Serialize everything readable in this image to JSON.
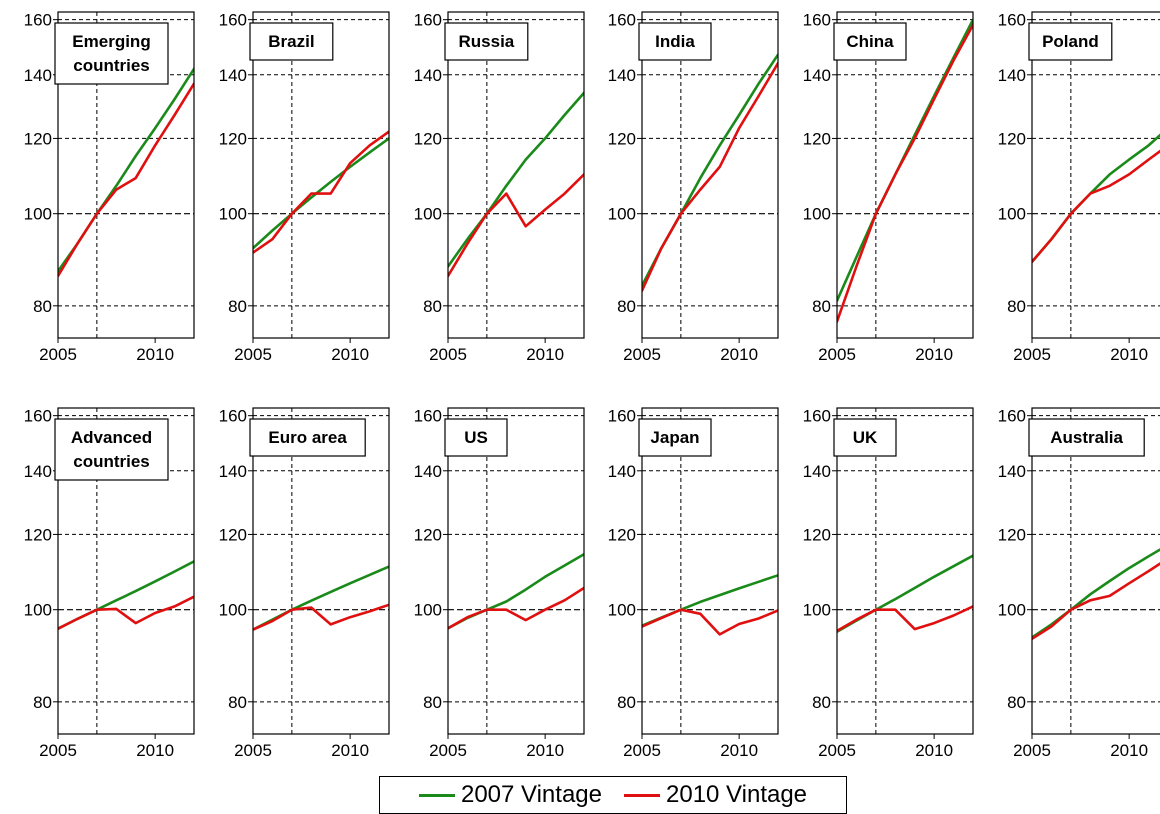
{
  "chart_data": {
    "type": "line",
    "series_colors": {
      "2007 Vintage": "#1a8a1a",
      "2010 Vintage": "#e01010"
    },
    "x_ticks": [
      2005,
      2010
    ],
    "y_ticks": [
      80,
      100,
      120,
      140,
      160
    ],
    "xlim": [
      2005,
      2012
    ],
    "ylim": [
      74,
      163
    ],
    "y_scale": "log",
    "reference_lines": {
      "x": 2007,
      "y": 100
    },
    "grid": true,
    "legend": {
      "position": "bottom-center",
      "entries": [
        "2007 Vintage",
        "2010 Vintage"
      ]
    },
    "panels": [
      {
        "title": [
          "Emerging",
          "countries"
        ],
        "x": [
          2005,
          2006,
          2007,
          2008,
          2009,
          2010,
          2011,
          2012
        ],
        "series": [
          {
            "name": "2007 Vintage",
            "values": [
              87,
              93,
              100,
              107,
              115,
              123,
              132,
              142
            ]
          },
          {
            "name": "2010 Vintage",
            "values": [
              86,
              93,
              100,
              106,
              109,
              118,
              127,
              137
            ]
          }
        ]
      },
      {
        "title": [
          "Brazil"
        ],
        "x": [
          2005,
          2006,
          2007,
          2008,
          2009,
          2010,
          2011,
          2012
        ],
        "series": [
          {
            "name": "2007 Vintage",
            "values": [
              92,
              96,
              100,
              104,
              108,
              112,
              116,
              120
            ]
          },
          {
            "name": "2010 Vintage",
            "values": [
              91,
              94,
              100,
              105,
              105,
              113,
              118,
              122
            ]
          }
        ]
      },
      {
        "title": [
          "Russia"
        ],
        "x": [
          2005,
          2006,
          2007,
          2008,
          2009,
          2010,
          2011,
          2012
        ],
        "series": [
          {
            "name": "2007 Vintage",
            "values": [
              88,
              94,
              100,
              107,
              114,
              120,
              127,
              134
            ]
          },
          {
            "name": "2010 Vintage",
            "values": [
              86,
              93,
              100,
              105,
              97,
              101,
              105,
              110
            ]
          }
        ]
      },
      {
        "title": [
          "India"
        ],
        "x": [
          2005,
          2006,
          2007,
          2008,
          2009,
          2010,
          2011,
          2012
        ],
        "series": [
          {
            "name": "2007 Vintage",
            "values": [
              84,
              92,
              100,
              109,
              118,
              127,
              137,
              147
            ]
          },
          {
            "name": "2010 Vintage",
            "values": [
              83,
              92,
              100,
              106,
              112,
              123,
              133,
              144
            ]
          }
        ]
      },
      {
        "title": [
          "China"
        ],
        "x": [
          2005,
          2006,
          2007,
          2008,
          2009,
          2010,
          2011,
          2012
        ],
        "series": [
          {
            "name": "2007 Vintage",
            "values": [
              81,
              90,
              100,
              110,
              121,
              133,
              146,
              160
            ]
          },
          {
            "name": "2010 Vintage",
            "values": [
              77,
              88,
              100,
              110,
              120,
              132,
              145,
              158
            ]
          }
        ]
      },
      {
        "title": [
          "Poland"
        ],
        "x": [
          2005,
          2006,
          2007,
          2008,
          2009,
          2010,
          2011,
          2012
        ],
        "series": [
          {
            "name": "2007 Vintage",
            "values": [
              89,
              94,
              100,
              105,
              110,
              114,
              118,
              123
            ]
          },
          {
            "name": "2010 Vintage",
            "values": [
              89,
              94,
              100,
              105,
              107,
              110,
              114,
              118
            ]
          }
        ]
      },
      {
        "title": [
          "Advanced",
          "countries"
        ],
        "x": [
          2005,
          2006,
          2007,
          2008,
          2009,
          2010,
          2011,
          2012
        ],
        "series": [
          {
            "name": "2007 Vintage",
            "values": [
              95.5,
              97.8,
              100,
              102.3,
              104.6,
              107.1,
              109.7,
              112.4
            ]
          },
          {
            "name": "2010 Vintage",
            "values": [
              95.5,
              97.8,
              100,
              100.2,
              96.8,
              99.2,
              100.8,
              103.2
            ]
          }
        ]
      },
      {
        "title": [
          "Euro area"
        ],
        "x": [
          2005,
          2006,
          2007,
          2008,
          2009,
          2010,
          2011,
          2012
        ],
        "series": [
          {
            "name": "2007 Vintage",
            "values": [
              95.3,
              97.6,
              100,
              102.2,
              104.4,
              106.6,
              108.8,
              111
            ]
          },
          {
            "name": "2010 Vintage",
            "values": [
              95.3,
              97.3,
              100,
              100.5,
              96.5,
              98.2,
              99.6,
              101.2
            ]
          }
        ]
      },
      {
        "title": [
          "US"
        ],
        "x": [
          2005,
          2006,
          2007,
          2008,
          2009,
          2010,
          2011,
          2012
        ],
        "series": [
          {
            "name": "2007 Vintage",
            "values": [
              95.6,
              98,
              100,
              102,
              105,
              108.3,
              111.3,
              114.4
            ]
          },
          {
            "name": "2010 Vintage",
            "values": [
              95.6,
              98.2,
              100,
              100,
              97.5,
              100,
              102.3,
              105.4
            ]
          }
        ]
      },
      {
        "title": [
          "Japan"
        ],
        "x": [
          2005,
          2006,
          2007,
          2008,
          2009,
          2010,
          2011,
          2012
        ],
        "series": [
          {
            "name": "2007 Vintage",
            "values": [
              96.2,
              98.1,
              100,
              101.9,
              103.6,
              105.3,
              107,
              108.7
            ]
          },
          {
            "name": "2010 Vintage",
            "values": [
              96,
              98,
              100,
              99,
              94.2,
              96.6,
              97.9,
              99.8
            ]
          }
        ]
      },
      {
        "title": [
          "UK"
        ],
        "x": [
          2005,
          2006,
          2007,
          2008,
          2009,
          2010,
          2011,
          2012
        ],
        "series": [
          {
            "name": "2007 Vintage",
            "values": [
              94.8,
              97.4,
              100,
              102.6,
              105.4,
              108.3,
              111.1,
              114
            ]
          },
          {
            "name": "2010 Vintage",
            "values": [
              95,
              97.6,
              100,
              100,
              95.4,
              96.8,
              98.6,
              100.8
            ]
          }
        ]
      },
      {
        "title": [
          "Australia"
        ],
        "x": [
          2005,
          2006,
          2007,
          2008,
          2009,
          2010,
          2011,
          2012
        ],
        "series": [
          {
            "name": "2007 Vintage",
            "values": [
              93.5,
              96.5,
              100,
              103.8,
              107.2,
              110.6,
              113.8,
              117
            ]
          },
          {
            "name": "2010 Vintage",
            "values": [
              93.2,
              96,
              100,
              102.3,
              103.4,
              106.6,
              109.8,
              113.2
            ]
          }
        ]
      }
    ]
  }
}
